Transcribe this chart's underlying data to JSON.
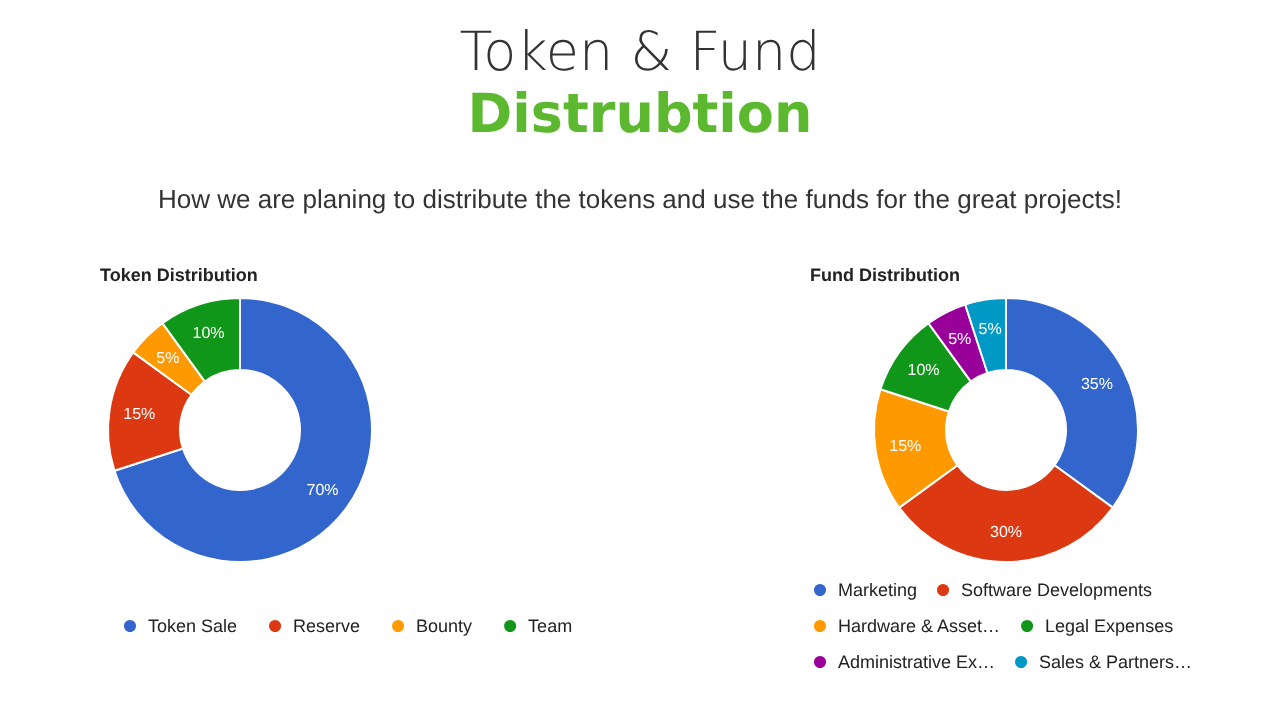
{
  "chart_data": [
    {
      "type": "other",
      "title": "Token & Fund",
      "subtitle": "Distrubtion",
      "annotations": [
        "How we are planing to distribute the tokens and use the funds for the great projects!"
      ]
    },
    {
      "type": "donut",
      "title": "Token Distribution",
      "categories": [
        "Token Sale",
        "Reserve",
        "Bounty",
        "Team"
      ],
      "values": [
        70,
        15,
        5,
        10
      ],
      "value_labels": [
        "70%",
        "15%",
        "5%",
        "10%"
      ],
      "colors": [
        "#3366cc",
        "#dc3912",
        "#ff9900",
        "#109618"
      ],
      "legend": "bottom"
    },
    {
      "type": "donut",
      "title": "Fund Distribution",
      "categories": [
        "Marketing",
        "Software Developments",
        "Hardware & Asset…",
        "Legal Expenses",
        "Administrative Ex…",
        "Sales & Partners…"
      ],
      "values": [
        35,
        30,
        15,
        10,
        5,
        5
      ],
      "value_labels": [
        "35%",
        "30%",
        "15%",
        "10%",
        "5%",
        "5%"
      ],
      "colors": [
        "#3366cc",
        "#dc3912",
        "#ff9900",
        "#109618",
        "#990099",
        "#0099c6"
      ],
      "legend": "bottom"
    }
  ]
}
